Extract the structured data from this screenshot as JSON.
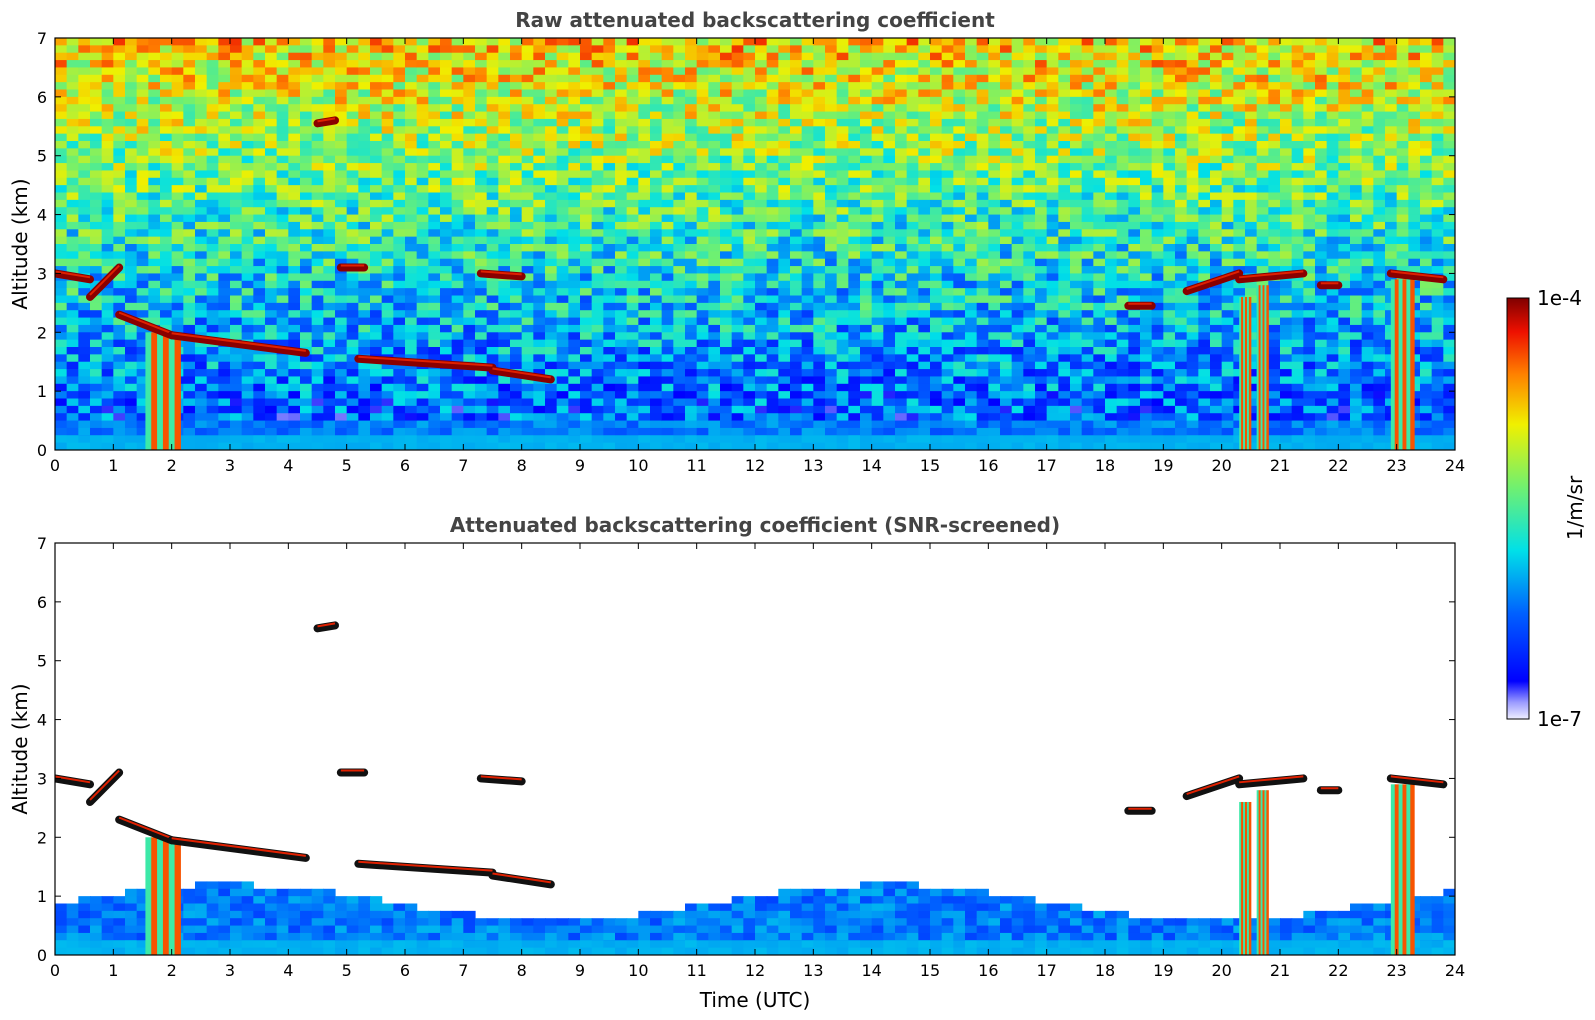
{
  "chart_data": [
    {
      "type": "heatmap",
      "title": "Raw attenuated backscattering coefficient",
      "xlabel": "",
      "ylabel": "Altitude (km)",
      "xlim": [
        0,
        24
      ],
      "ylim": [
        0,
        7
      ],
      "x_ticks": [
        "0",
        "1",
        "2",
        "3",
        "4",
        "5",
        "6",
        "7",
        "8",
        "9",
        "10",
        "11",
        "12",
        "13",
        "14",
        "15",
        "16",
        "17",
        "18",
        "19",
        "20",
        "21",
        "22",
        "23",
        "24"
      ],
      "y_ticks": [
        "0",
        "1",
        "2",
        "3",
        "4",
        "5",
        "6",
        "7"
      ],
      "features": {
        "noisy_background": true,
        "cloud_layers": [
          {
            "t_start": 0.0,
            "t_end": 0.6,
            "alt_start": 3.0,
            "alt_end": 2.9
          },
          {
            "t_start": 0.6,
            "t_end": 1.1,
            "alt_start": 2.6,
            "alt_end": 3.1
          },
          {
            "t_start": 1.1,
            "t_end": 2.0,
            "alt_start": 2.3,
            "alt_end": 1.95
          },
          {
            "t_start": 2.0,
            "t_end": 4.3,
            "alt_start": 1.95,
            "alt_end": 1.65
          },
          {
            "t_start": 5.2,
            "t_end": 7.5,
            "alt_start": 1.55,
            "alt_end": 1.4
          },
          {
            "t_start": 7.5,
            "t_end": 8.5,
            "alt_start": 1.35,
            "alt_end": 1.2
          },
          {
            "t_start": 4.5,
            "t_end": 4.8,
            "alt_start": 5.55,
            "alt_end": 5.6
          },
          {
            "t_start": 4.9,
            "t_end": 5.3,
            "alt_start": 3.1,
            "alt_end": 3.1
          },
          {
            "t_start": 7.3,
            "t_end": 8.0,
            "alt_start": 3.0,
            "alt_end": 2.95
          },
          {
            "t_start": 18.4,
            "t_end": 18.8,
            "alt_start": 2.45,
            "alt_end": 2.45
          },
          {
            "t_start": 19.4,
            "t_end": 20.3,
            "alt_start": 2.7,
            "alt_end": 3.0
          },
          {
            "t_start": 20.3,
            "t_end": 21.4,
            "alt_start": 2.9,
            "alt_end": 3.0
          },
          {
            "t_start": 21.7,
            "t_end": 22.0,
            "alt_start": 2.8,
            "alt_end": 2.8
          },
          {
            "t_start": 22.9,
            "t_end": 23.8,
            "alt_start": 3.0,
            "alt_end": 2.9
          }
        ],
        "precipitation_shafts": [
          {
            "t_start": 1.55,
            "t_end": 2.15,
            "alt_top": 2.0
          },
          {
            "t_start": 20.3,
            "t_end": 20.5,
            "alt_top": 2.6
          },
          {
            "t_start": 20.6,
            "t_end": 20.8,
            "alt_top": 2.8
          },
          {
            "t_start": 22.9,
            "t_end": 23.3,
            "alt_top": 2.9
          }
        ]
      }
    },
    {
      "type": "heatmap",
      "title": "Attenuated backscattering coefficient (SNR-screened)",
      "xlabel": "Time (UTC)",
      "ylabel": "Altitude (km)",
      "xlim": [
        0,
        24
      ],
      "ylim": [
        0,
        7
      ],
      "x_ticks": [
        "0",
        "1",
        "2",
        "3",
        "4",
        "5",
        "6",
        "7",
        "8",
        "9",
        "10",
        "11",
        "12",
        "13",
        "14",
        "15",
        "16",
        "17",
        "18",
        "19",
        "20",
        "21",
        "22",
        "23",
        "24"
      ],
      "y_ticks": [
        "0",
        "1",
        "2",
        "3",
        "4",
        "5",
        "6",
        "7"
      ],
      "features": {
        "noisy_background": false,
        "screened": true
      }
    }
  ],
  "colorbar": {
    "label": "1/m/sr",
    "min_label": "1e-7",
    "max_label": "1e-4",
    "scale": "log",
    "colormap": "jet"
  },
  "colors": {
    "title": "#444444",
    "axes": "#000000",
    "background": "#ffffff"
  }
}
